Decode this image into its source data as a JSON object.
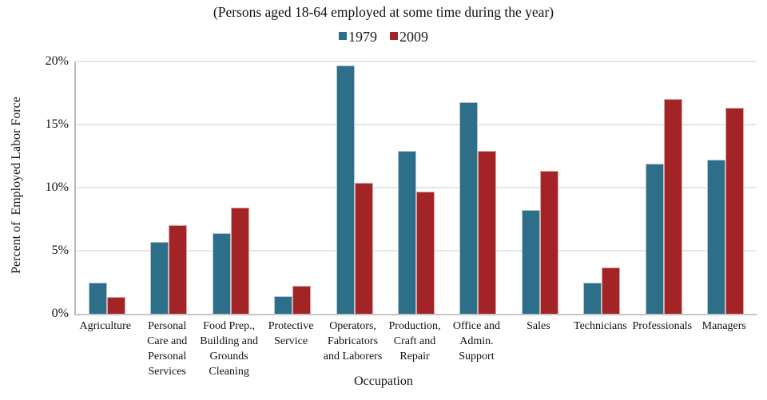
{
  "chart_data": {
    "type": "bar",
    "title": "(Persons aged 18-64 employed at some time during the year)",
    "xlabel": "Occupation",
    "ylabel": "Percent of  Employed Labor Force",
    "ylim": [
      0,
      20
    ],
    "ytick_step": 5,
    "yticks": [
      "0%",
      "5%",
      "10%",
      "15%",
      "20%"
    ],
    "grid": true,
    "legend_position": "top-center",
    "categories": [
      "Agriculture",
      "Personal Care and Personal Services",
      "Food Prep., Building and Grounds Cleaning",
      "Protective Service",
      "Operators, Fabricators and Laborers",
      "Production, Craft and Repair",
      "Office and Admin. Support",
      "Sales",
      "Technicians",
      "Professionals",
      "Managers"
    ],
    "tick_lines": [
      [
        "Agriculture"
      ],
      [
        "Personal",
        "Care and",
        "Personal",
        "Services"
      ],
      [
        "Food Prep.,",
        "Building and",
        "Grounds",
        "Cleaning"
      ],
      [
        "Protective",
        "Service"
      ],
      [
        "Operators,",
        "Fabricators",
        "and Laborers"
      ],
      [
        "Production,",
        "Craft and",
        "Repair"
      ],
      [
        "Office and",
        "Admin.",
        "Support"
      ],
      [
        "Sales"
      ],
      [
        "Technicians"
      ],
      [
        "Professionals"
      ],
      [
        "Managers"
      ]
    ],
    "series": [
      {
        "name": "1979",
        "color": "#2d6e88",
        "edge_color": "#b5c5d1",
        "values": [
          2.5,
          5.7,
          6.4,
          1.4,
          19.7,
          12.9,
          16.8,
          8.2,
          2.5,
          11.9,
          12.2
        ]
      },
      {
        "name": "2009",
        "color": "#a32427",
        "edge_color": "#dca69e",
        "values": [
          1.3,
          7.0,
          8.4,
          2.2,
          10.4,
          9.7,
          12.9,
          11.3,
          3.7,
          17.0,
          16.3
        ]
      }
    ],
    "grid_color": "#e6e6e6",
    "axis_color": "#b9b9b9"
  }
}
